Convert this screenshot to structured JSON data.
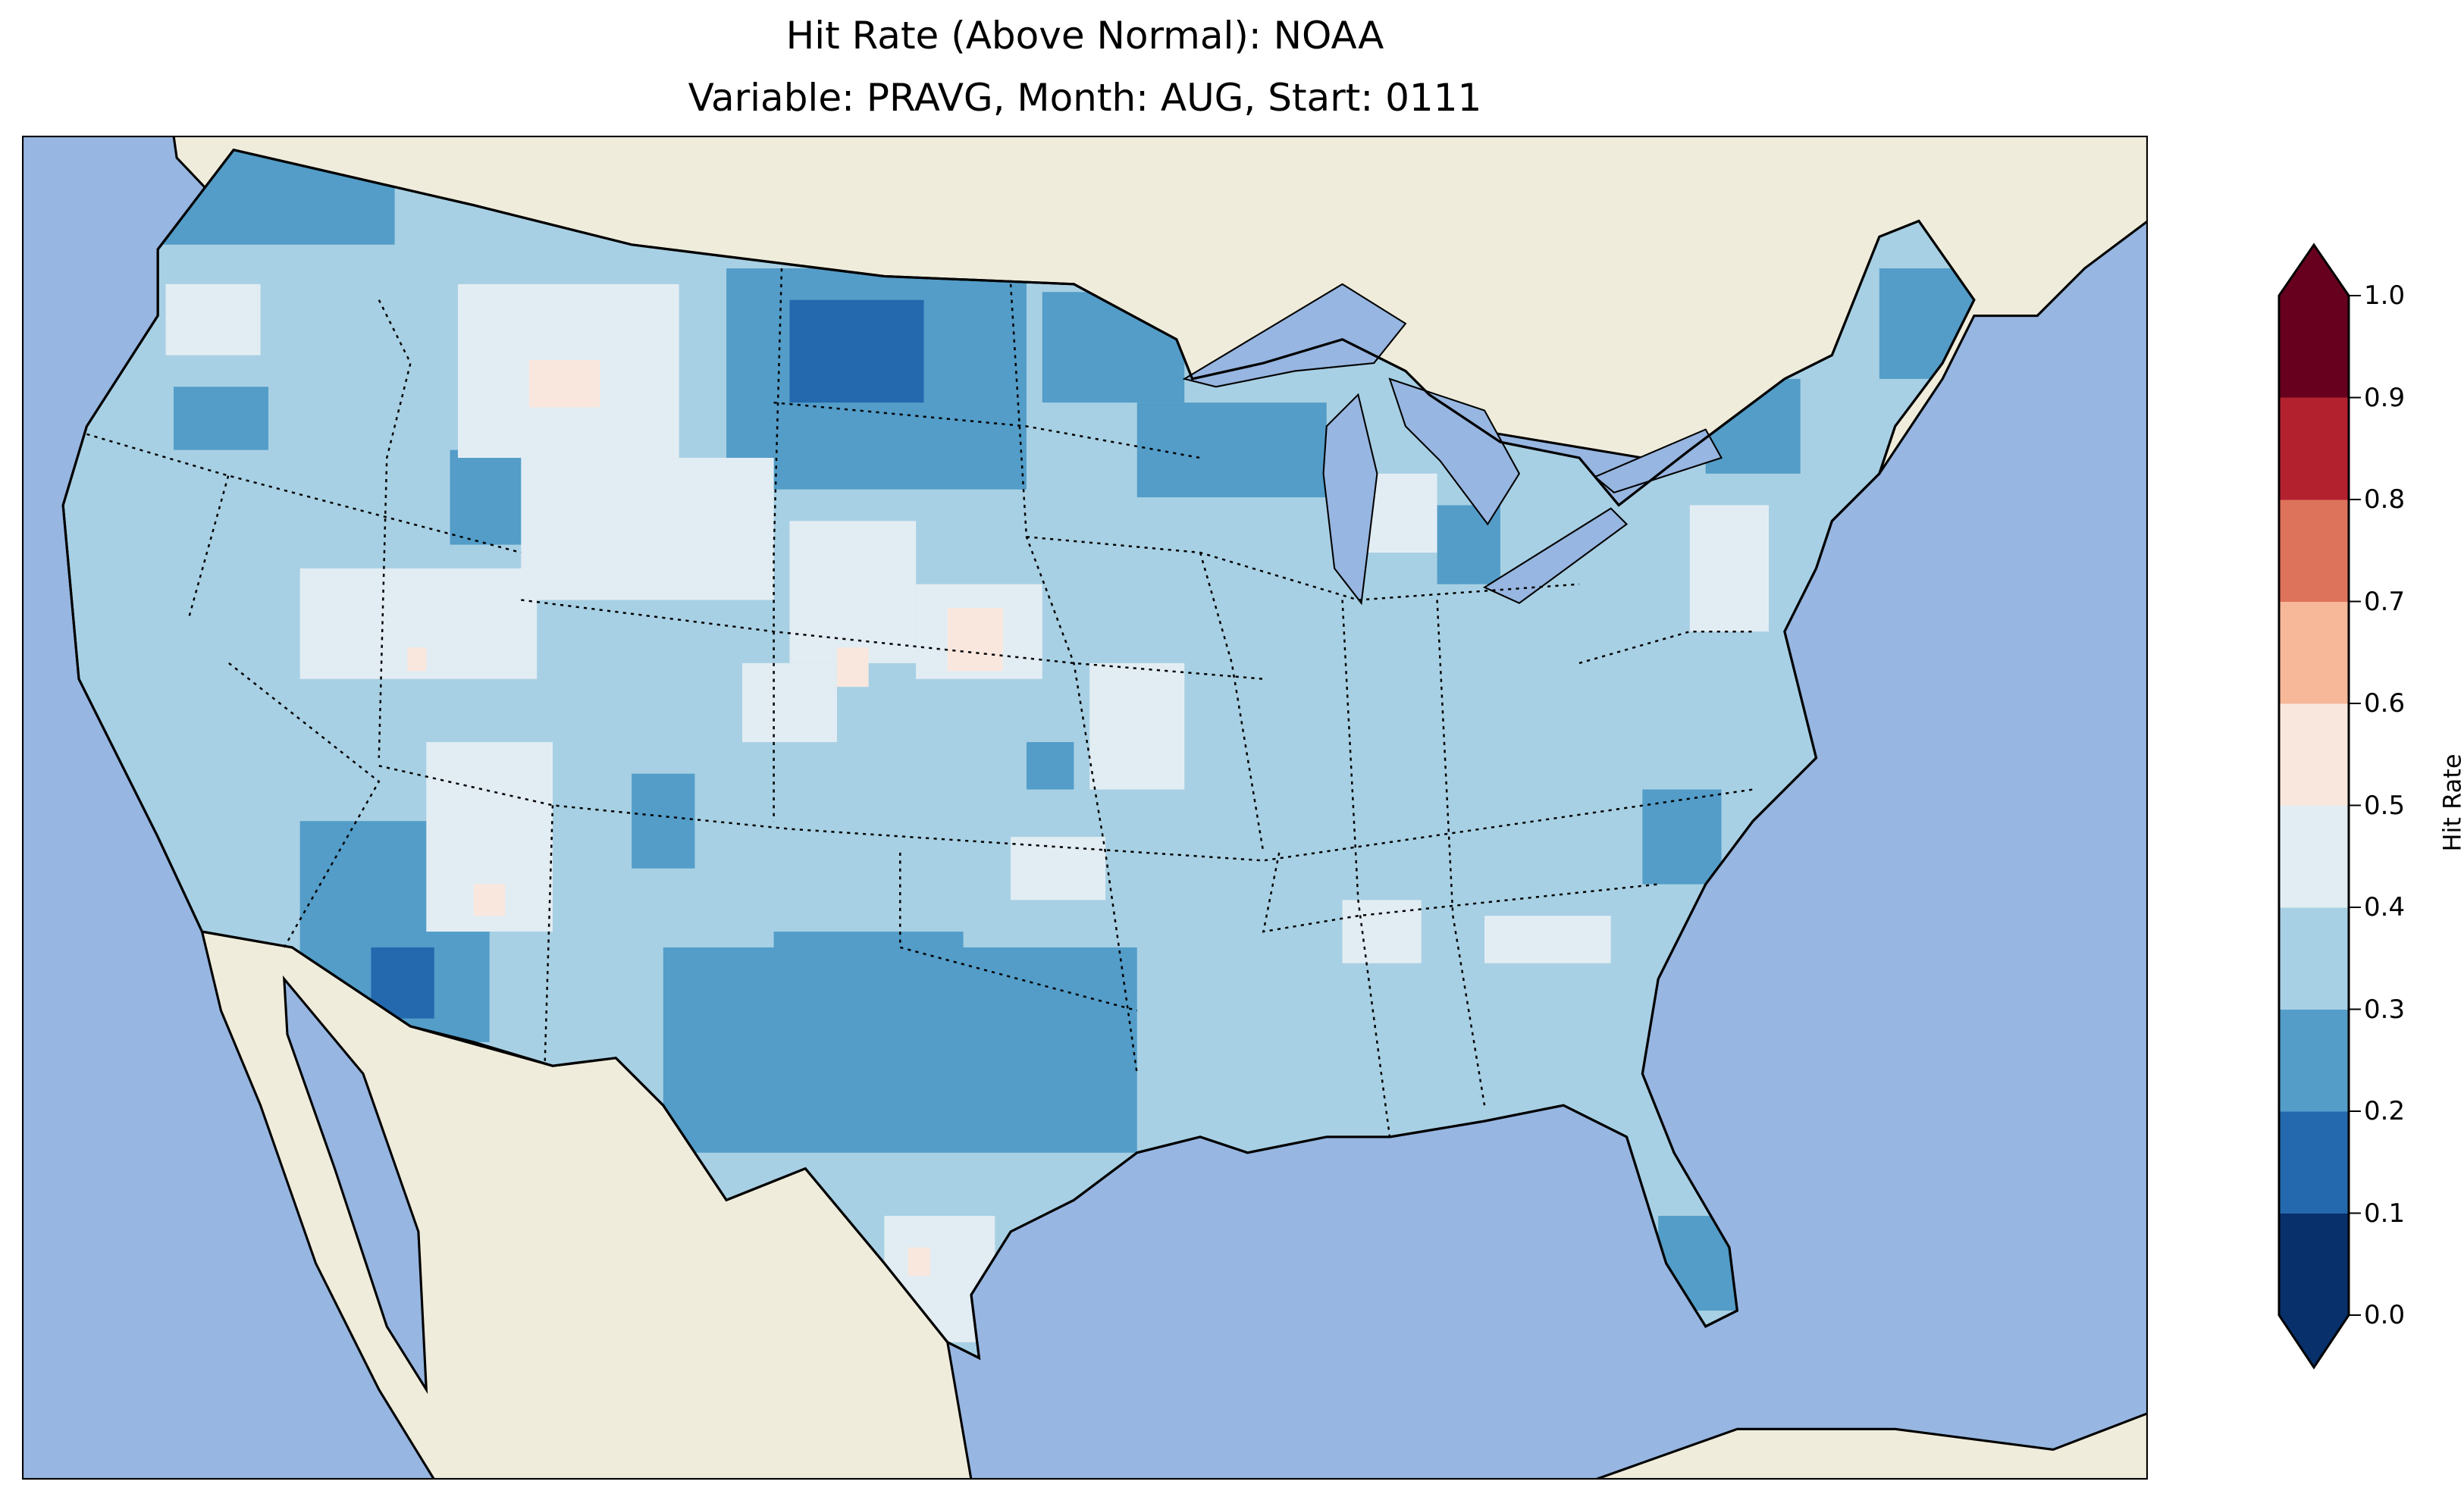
{
  "title": {
    "line1": "Hit Rate (Above Normal): NOAA",
    "line2": "Variable: PRAVG, Month: AUG, Start: 0111"
  },
  "colorbar": {
    "label": "Hit Rate",
    "ticks": [
      "0.0",
      "0.1",
      "0.2",
      "0.3",
      "0.4",
      "0.5",
      "0.6",
      "0.7",
      "0.8",
      "0.9",
      "1.0"
    ],
    "colors": [
      "#08306b",
      "#2469ad",
      "#539dc8",
      "#a8d0e4",
      "#e2edf3",
      "#f9e7de",
      "#f6b899",
      "#de735b",
      "#b3212f",
      "#67001f"
    ],
    "range": [
      0.0,
      1.0
    ]
  },
  "map": {
    "ocean_color": "#97b6e1",
    "land_color": "#efecdb",
    "lake_color": "#97b6e1"
  }
}
